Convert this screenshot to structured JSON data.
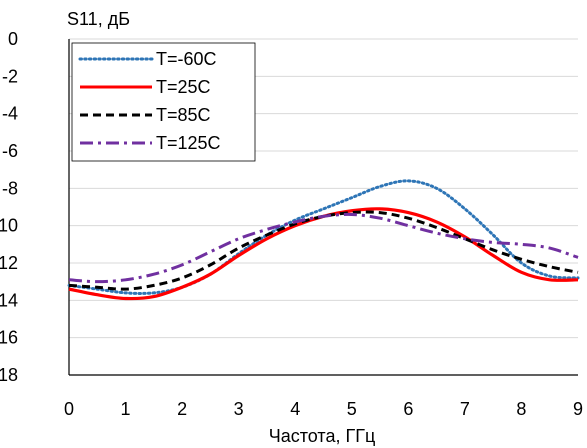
{
  "chart_data": {
    "type": "line",
    "title": "",
    "xlabel": "Частота, ГГц",
    "ylabel": "S11, дБ",
    "xlim": [
      0,
      9
    ],
    "ylim": [
      -18,
      0
    ],
    "xticks": [
      0,
      1,
      2,
      3,
      4,
      5,
      6,
      7,
      8,
      9
    ],
    "yticks": [
      0,
      -2,
      -4,
      -6,
      -8,
      -10,
      -12,
      -14,
      -16,
      -18
    ],
    "grid": "horizontal",
    "legend_position": "top-left",
    "series": [
      {
        "name": "T=-60C",
        "color": "#2e75b6",
        "dash": "dotted",
        "x": [
          0,
          0.5,
          1,
          1.5,
          2,
          2.5,
          3,
          3.5,
          4,
          4.5,
          5,
          5.5,
          6,
          6.5,
          7,
          7.5,
          8,
          8.5,
          9
        ],
        "y": [
          -13.2,
          -13.4,
          -13.6,
          -13.6,
          -13.3,
          -12.6,
          -11.5,
          -10.5,
          -9.7,
          -9.1,
          -8.5,
          -7.9,
          -7.6,
          -8.0,
          -9.1,
          -10.5,
          -12.0,
          -12.7,
          -12.8
        ]
      },
      {
        "name": "T=25C",
        "color": "#ff0000",
        "dash": "solid",
        "x": [
          0,
          0.5,
          1,
          1.5,
          2,
          2.5,
          3,
          3.5,
          4,
          4.5,
          5,
          5.5,
          6,
          6.5,
          7,
          7.5,
          8,
          8.5,
          9
        ],
        "y": [
          -13.4,
          -13.7,
          -13.9,
          -13.8,
          -13.3,
          -12.6,
          -11.6,
          -10.7,
          -10.0,
          -9.5,
          -9.2,
          -9.1,
          -9.3,
          -9.8,
          -10.6,
          -11.6,
          -12.5,
          -12.9,
          -12.9
        ]
      },
      {
        "name": "T=85C",
        "color": "#000000",
        "dash": "dashed",
        "x": [
          0,
          0.5,
          1,
          1.5,
          2,
          2.5,
          3,
          3.5,
          4,
          4.5,
          5,
          5.5,
          6,
          6.5,
          7,
          7.5,
          8,
          8.5,
          9
        ],
        "y": [
          -13.2,
          -13.3,
          -13.4,
          -13.2,
          -12.8,
          -12.1,
          -11.2,
          -10.5,
          -9.9,
          -9.5,
          -9.3,
          -9.3,
          -9.6,
          -10.1,
          -10.7,
          -11.3,
          -11.8,
          -12.2,
          -12.5
        ]
      },
      {
        "name": "T=125C",
        "color": "#7030a0",
        "dash": "dashdot",
        "x": [
          0,
          0.5,
          1,
          1.5,
          2,
          2.5,
          3,
          3.5,
          4,
          4.5,
          5,
          5.5,
          6,
          6.5,
          7,
          7.5,
          8,
          8.5,
          9
        ],
        "y": [
          -12.9,
          -13.0,
          -12.9,
          -12.6,
          -12.1,
          -11.4,
          -10.7,
          -10.2,
          -9.8,
          -9.5,
          -9.4,
          -9.6,
          -10.0,
          -10.4,
          -10.7,
          -10.9,
          -11.0,
          -11.2,
          -11.7
        ]
      }
    ]
  }
}
